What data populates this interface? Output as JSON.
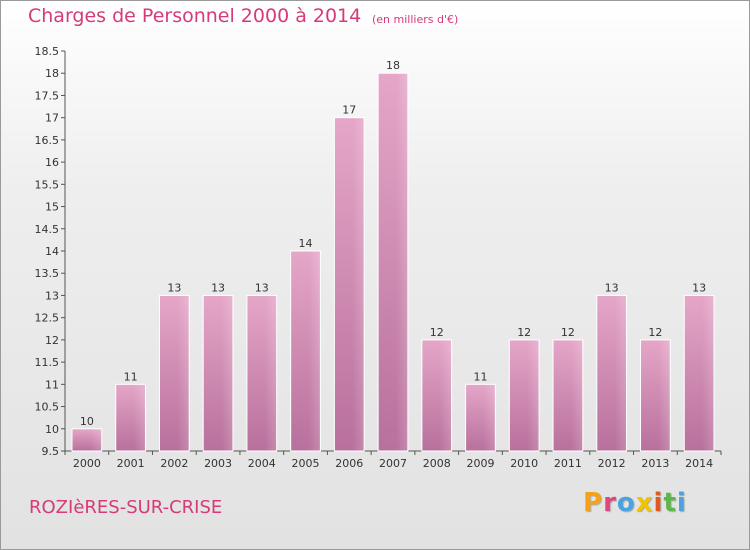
{
  "header": {
    "title": "Charges de Personnel 2000 à 2014",
    "subtitle": "(en milliers d'€)"
  },
  "footer": {
    "town": "ROZIèRES-SUR-CRISE",
    "logo": "Proxiti",
    "logo_colors": [
      "#f5a21b",
      "#e0457b",
      "#4aa3df",
      "#f0c400",
      "#e05a1e",
      "#5bb848",
      "#4aa3df"
    ]
  },
  "colors": {
    "bar_fill": "#d98fb8",
    "bar_stroke": "#ffffff",
    "accent": "#d63a7a"
  },
  "chart_data": {
    "type": "bar",
    "categories": [
      "2000",
      "2001",
      "2002",
      "2003",
      "2004",
      "2005",
      "2006",
      "2007",
      "2008",
      "2009",
      "2010",
      "2011",
      "2012",
      "2013",
      "2014"
    ],
    "values": [
      10,
      11,
      13,
      13,
      13,
      14,
      17,
      18,
      12,
      11,
      12,
      12,
      13,
      12,
      13
    ],
    "data_labels": [
      "10",
      "11",
      "13",
      "13",
      "13",
      "14",
      "17",
      "18",
      "12",
      "11",
      "12",
      "12",
      "13",
      "12",
      "13"
    ],
    "ylim": [
      9.5,
      18.5
    ],
    "yticks": [
      9.5,
      10,
      10.5,
      11,
      11.5,
      12,
      12.5,
      13,
      13.5,
      14,
      14.5,
      15,
      15.5,
      16,
      16.5,
      17,
      17.5,
      18,
      18.5
    ],
    "ytick_labels": [
      "9.5",
      "10",
      "10.5",
      "11",
      "11.5",
      "12",
      "12.5",
      "13",
      "13.5",
      "14",
      "14.5",
      "15",
      "15.5",
      "16",
      "16.5",
      "17",
      "17.5",
      "18",
      "18.5"
    ],
    "grid": false
  }
}
